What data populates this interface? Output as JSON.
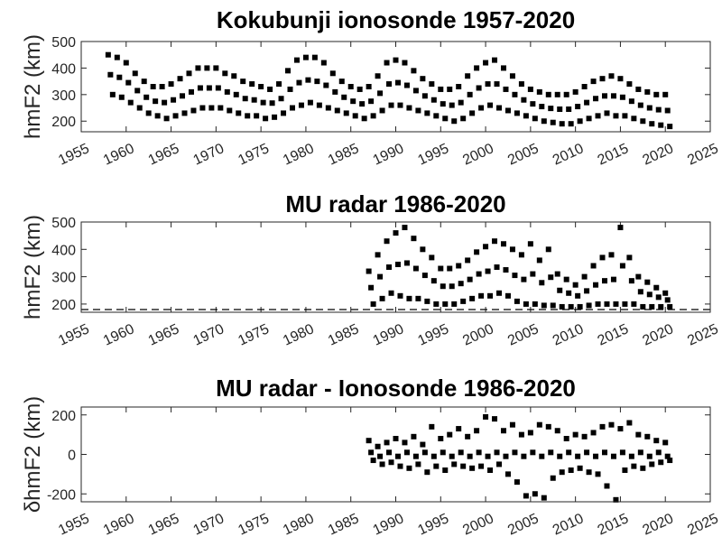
{
  "chart_data": [
    {
      "type": "scatter",
      "title": "Kokubunji ionosonde 1957-2020",
      "ylabel": "hmF2 (km)",
      "color": "#000000",
      "xlim": [
        1955,
        2025
      ],
      "xticks": [
        1955,
        1960,
        1965,
        1970,
        1975,
        1980,
        1985,
        1990,
        1995,
        2000,
        2005,
        2010,
        2015,
        2020,
        2025
      ],
      "ylim": [
        160,
        500
      ],
      "yticks": [
        200,
        300,
        400,
        500
      ],
      "x": [
        1958,
        1958.25,
        1958.5,
        1959,
        1959.25,
        1959.5,
        1960,
        1960.25,
        1960.5,
        1961,
        1961.25,
        1961.5,
        1962,
        1962.25,
        1962.5,
        1963,
        1963.25,
        1963.5,
        1964,
        1964.25,
        1964.5,
        1965,
        1965.25,
        1965.5,
        1966,
        1966.25,
        1966.5,
        1967,
        1967.25,
        1967.5,
        1968,
        1968.25,
        1968.5,
        1969,
        1969.25,
        1969.5,
        1970,
        1970.25,
        1970.5,
        1971,
        1971.25,
        1971.5,
        1972,
        1972.25,
        1972.5,
        1973,
        1973.25,
        1973.5,
        1974,
        1974.25,
        1974.5,
        1975,
        1975.25,
        1975.5,
        1976,
        1976.25,
        1976.5,
        1977,
        1977.25,
        1977.5,
        1978,
        1978.25,
        1978.5,
        1979,
        1979.25,
        1979.5,
        1980,
        1980.25,
        1980.5,
        1981,
        1981.25,
        1981.5,
        1982,
        1982.25,
        1982.5,
        1983,
        1983.25,
        1983.5,
        1984,
        1984.25,
        1984.5,
        1985,
        1985.25,
        1985.5,
        1986,
        1986.25,
        1986.5,
        1987,
        1987.25,
        1987.5,
        1988,
        1988.25,
        1988.5,
        1989,
        1989.25,
        1989.5,
        1990,
        1990.25,
        1990.5,
        1991,
        1991.25,
        1991.5,
        1992,
        1992.25,
        1992.5,
        1993,
        1993.25,
        1993.5,
        1994,
        1994.25,
        1994.5,
        1995,
        1995.25,
        1995.5,
        1996,
        1996.25,
        1996.5,
        1997,
        1997.25,
        1997.5,
        1998,
        1998.25,
        1998.5,
        1999,
        1999.25,
        1999.5,
        2000,
        2000.25,
        2000.5,
        2001,
        2001.25,
        2001.5,
        2002,
        2002.25,
        2002.5,
        2003,
        2003.25,
        2003.5,
        2004,
        2004.25,
        2004.5,
        2005,
        2005.25,
        2005.5,
        2006,
        2006.25,
        2006.5,
        2007,
        2007.25,
        2007.5,
        2008,
        2008.25,
        2008.5,
        2009,
        2009.25,
        2009.5,
        2010,
        2010.25,
        2010.5,
        2011,
        2011.25,
        2011.5,
        2012,
        2012.25,
        2012.5,
        2013,
        2013.25,
        2013.5,
        2014,
        2014.25,
        2014.5,
        2015,
        2015.25,
        2015.5,
        2016,
        2016.25,
        2016.5,
        2017,
        2017.25,
        2017.5,
        2018,
        2018.25,
        2018.5,
        2019,
        2019.25,
        2019.5,
        2020,
        2020.25,
        2020.5
      ],
      "values": [
        450,
        375,
        300,
        440,
        365,
        290,
        420,
        345,
        270,
        380,
        315,
        250,
        350,
        290,
        230,
        330,
        275,
        220,
        330,
        270,
        210,
        340,
        280,
        220,
        360,
        295,
        230,
        380,
        310,
        240,
        400,
        325,
        250,
        400,
        325,
        250,
        400,
        325,
        250,
        380,
        310,
        240,
        370,
        300,
        230,
        350,
        285,
        220,
        340,
        280,
        220,
        330,
        270,
        210,
        320,
        268,
        215,
        340,
        285,
        230,
        390,
        320,
        250,
        430,
        345,
        260,
        440,
        355,
        270,
        440,
        350,
        260,
        420,
        335,
        250,
        380,
        310,
        240,
        350,
        290,
        230,
        330,
        275,
        220,
        320,
        265,
        210,
        330,
        275,
        220,
        370,
        305,
        240,
        420,
        340,
        260,
        430,
        345,
        260,
        420,
        335,
        250,
        390,
        315,
        240,
        360,
        295,
        230,
        340,
        280,
        220,
        320,
        265,
        210,
        320,
        260,
        200,
        330,
        270,
        210,
        370,
        300,
        230,
        400,
        325,
        250,
        420,
        340,
        260,
        430,
        340,
        250,
        400,
        320,
        240,
        370,
        300,
        230,
        340,
        280,
        220,
        320,
        265,
        210,
        310,
        255,
        200,
        300,
        248,
        195,
        300,
        245,
        190,
        300,
        245,
        190,
        310,
        255,
        200,
        330,
        270,
        210,
        350,
        285,
        220,
        360,
        295,
        230,
        370,
        295,
        220,
        360,
        290,
        220,
        340,
        275,
        210,
        320,
        260,
        200,
        310,
        250,
        190,
        300,
        243,
        185,
        300,
        240,
        180
      ]
    },
    {
      "type": "scatter",
      "title": "MU radar 1986-2020",
      "ylabel": "hmF2 (km)",
      "color": "#000000",
      "xlim": [
        1955,
        2025
      ],
      "xticks": [
        1955,
        1960,
        1965,
        1970,
        1975,
        1980,
        1985,
        1990,
        1995,
        2000,
        2005,
        2010,
        2015,
        2020,
        2025
      ],
      "ylim": [
        170,
        500
      ],
      "yticks": [
        200,
        300,
        400,
        500
      ],
      "hline": 180,
      "x": [
        1987,
        1987.25,
        1987.5,
        1988,
        1988.25,
        1988.5,
        1989,
        1989.25,
        1989.5,
        1990,
        1990.25,
        1990.5,
        1991,
        1991.25,
        1991.5,
        1992,
        1992.25,
        1992.5,
        1993,
        1993.25,
        1993.5,
        1994,
        1994.25,
        1994.5,
        1995,
        1995.25,
        1995.5,
        1996,
        1996.25,
        1996.5,
        1997,
        1997.25,
        1997.5,
        1998,
        1998.25,
        1998.5,
        1999,
        1999.25,
        1999.5,
        2000,
        2000.25,
        2000.5,
        2001,
        2001.25,
        2001.5,
        2002,
        2002.25,
        2002.5,
        2003,
        2003.25,
        2003.5,
        2004,
        2004.25,
        2004.5,
        2005,
        2005.25,
        2005.5,
        2006,
        2006.25,
        2006.5,
        2007,
        2007.25,
        2007.5,
        2008,
        2008.25,
        2008.5,
        2009,
        2009.25,
        2009.5,
        2010,
        2010.25,
        2010.5,
        2011,
        2011.25,
        2011.5,
        2012,
        2012.25,
        2012.5,
        2013,
        2013.25,
        2013.5,
        2014,
        2014.25,
        2014.5,
        2015,
        2015.25,
        2015.5,
        2016,
        2016.25,
        2016.5,
        2017,
        2017.25,
        2017.5,
        2018,
        2018.25,
        2018.5,
        2019,
        2019.25,
        2019.5,
        2020,
        2020.25,
        2020.5
      ],
      "values": [
        320,
        260,
        200,
        380,
        300,
        220,
        430,
        335,
        240,
        460,
        345,
        230,
        480,
        350,
        220,
        440,
        330,
        220,
        400,
        305,
        210,
        370,
        285,
        200,
        330,
        265,
        200,
        330,
        265,
        200,
        340,
        275,
        210,
        360,
        290,
        220,
        390,
        310,
        230,
        410,
        320,
        230,
        430,
        335,
        240,
        420,
        325,
        230,
        400,
        305,
        210,
        380,
        290,
        200,
        420,
        310,
        200,
        360,
        278,
        195,
        400,
        298,
        195,
        310,
        250,
        190,
        290,
        240,
        190,
        270,
        230,
        190,
        300,
        248,
        195,
        340,
        270,
        200,
        370,
        285,
        200,
        380,
        290,
        200,
        480,
        340,
        200,
        370,
        285,
        200,
        300,
        245,
        190,
        280,
        235,
        190,
        260,
        225,
        190,
        240,
        215,
        190
      ]
    },
    {
      "type": "scatter",
      "title": "MU radar - Ionosonde 1986-2020",
      "ylabel": "δhmF2 (km)",
      "color": "#000000",
      "xlim": [
        1955,
        2025
      ],
      "xticks": [
        1955,
        1960,
        1965,
        1970,
        1975,
        1980,
        1985,
        1990,
        1995,
        2000,
        2005,
        2010,
        2015,
        2020,
        2025
      ],
      "ylim": [
        -240,
        240
      ],
      "yticks": [
        -200,
        0,
        200
      ],
      "x": [
        1987,
        1987.25,
        1987.5,
        1988,
        1988.25,
        1988.5,
        1989,
        1989.25,
        1989.5,
        1990,
        1990.25,
        1990.5,
        1991,
        1991.25,
        1991.5,
        1992,
        1992.25,
        1992.5,
        1993,
        1993.25,
        1993.5,
        1994,
        1994.25,
        1994.5,
        1995,
        1995.25,
        1995.5,
        1996,
        1996.25,
        1996.5,
        1997,
        1997.25,
        1997.5,
        1998,
        1998.25,
        1998.5,
        1999,
        1999.25,
        1999.5,
        2000,
        2000.25,
        2000.5,
        2001,
        2001.25,
        2001.5,
        2002,
        2002.25,
        2002.5,
        2003,
        2003.25,
        2003.5,
        2004,
        2004.25,
        2004.5,
        2005,
        2005.25,
        2005.5,
        2006,
        2006.25,
        2006.5,
        2007,
        2007.25,
        2007.5,
        2008,
        2008.25,
        2008.5,
        2009,
        2009.25,
        2009.5,
        2010,
        2010.25,
        2010.5,
        2011,
        2011.25,
        2011.5,
        2012,
        2012.25,
        2012.5,
        2013,
        2013.25,
        2013.5,
        2014,
        2014.25,
        2014.5,
        2015,
        2015.25,
        2015.5,
        2016,
        2016.25,
        2016.5,
        2017,
        2017.25,
        2017.5,
        2018,
        2018.25,
        2018.5,
        2019,
        2019.25,
        2019.5,
        2020,
        2020.25,
        2020.5
      ],
      "values": [
        70,
        10,
        -30,
        40,
        -10,
        -50,
        60,
        10,
        -40,
        80,
        -10,
        -60,
        60,
        10,
        -70,
        90,
        -10,
        -50,
        50,
        10,
        -90,
        140,
        -10,
        -60,
        80,
        10,
        -80,
        100,
        -10,
        -50,
        130,
        10,
        -60,
        90,
        -10,
        -70,
        120,
        10,
        -60,
        190,
        -10,
        -80,
        180,
        10,
        -50,
        120,
        -10,
        -100,
        150,
        10,
        -140,
        100,
        -10,
        -210,
        110,
        10,
        -200,
        150,
        -10,
        -220,
        140,
        10,
        -120,
        120,
        -10,
        -90,
        80,
        10,
        -80,
        100,
        -10,
        -70,
        90,
        10,
        -90,
        110,
        -10,
        -100,
        140,
        10,
        -160,
        150,
        -10,
        -230,
        130,
        10,
        -80,
        160,
        -10,
        -60,
        100,
        10,
        -70,
        90,
        -10,
        -50,
        70,
        10,
        -40,
        60,
        -10,
        -30
      ]
    }
  ]
}
